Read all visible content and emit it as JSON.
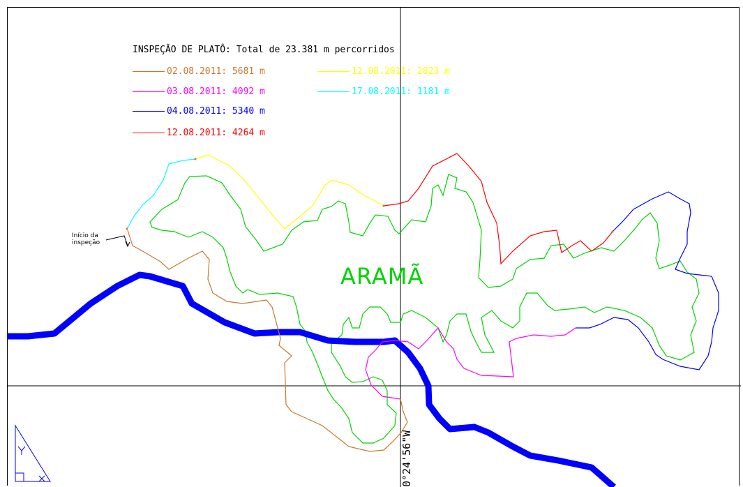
{
  "legend": {
    "title": "INSPEÇÃO DE PLATÔ: Total de 23.381 m percorridos",
    "entries": [
      {
        "label": "02.08.2011: 5681 m",
        "color": "#c8782a"
      },
      {
        "label": "03.08.2011: 4092 m",
        "color": "#ff00ff"
      },
      {
        "label": "04.08.2011: 5340 m",
        "color": "#0000ff"
      },
      {
        "label": "12.08.2011: 4264 m",
        "color": "#ff0000"
      },
      {
        "label": "12.08.2011: 2823 m",
        "color": "#ffff00"
      },
      {
        "label": "17.08.2011: 1181 m",
        "color": "#00ffff"
      }
    ]
  },
  "map": {
    "plateau_name": "ARAMÃ",
    "plateau_color": "#00d400",
    "river_color": "#0000ff",
    "start_label_line1": "Início da",
    "start_label_line2": "inspeção",
    "coordinate_label": "0°24'56\"W"
  }
}
